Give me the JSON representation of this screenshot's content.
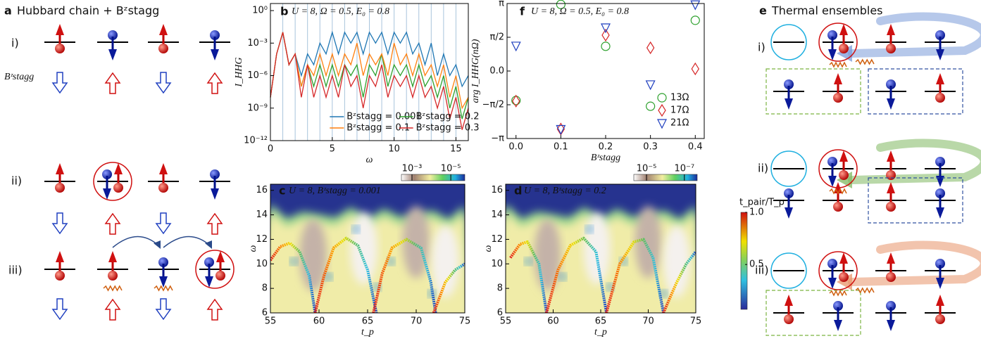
{
  "panel_a": {
    "letter": "a",
    "title": "Hubbard chain + Bᶻstagg",
    "field_label": "Bᶻstagg",
    "rows": [
      "i)",
      "ii)",
      "iii)"
    ]
  },
  "panel_e": {
    "letter": "e",
    "title": "Thermal ensembles",
    "rows": [
      "i)",
      "ii)",
      "iii)"
    ]
  },
  "chart_data": [
    {
      "type": "line",
      "letter": "b",
      "title": "U = 8, Ω = 0.5, E₀ = 0.8",
      "xlabel": "ω",
      "ylabel": "I_HHG",
      "log_y": true,
      "legend": "lower right",
      "xlim": [
        0,
        16
      ],
      "xticks": [
        0,
        5,
        10,
        15
      ],
      "ylim": [
        1e-12,
        4.5
      ],
      "yticks": [
        {
          "value": 1e-12,
          "label": "10⁻¹²"
        },
        {
          "value": 1e-09,
          "label": "10⁻⁹"
        },
        {
          "value": 1e-06,
          "label": "10⁻⁶"
        },
        {
          "value": 0.001,
          "label": "10⁻³"
        },
        {
          "value": 1,
          "label": "10⁰"
        }
      ],
      "vlines": [
        1,
        2,
        3,
        4,
        5,
        6,
        7,
        8,
        9,
        10,
        11,
        12,
        13,
        14,
        15
      ],
      "x": [
        0,
        0.5,
        1,
        1.5,
        2,
        2.5,
        3,
        3.5,
        4,
        4.5,
        5,
        5.5,
        6,
        6.5,
        7,
        7.5,
        8,
        8.5,
        9,
        9.5,
        10,
        10.5,
        11,
        11.5,
        12,
        12.5,
        13,
        13.5,
        14,
        14.5,
        15,
        15.5,
        16
      ],
      "series": [
        {
          "name": "Bᶻstagg = 0.001",
          "color": "#1f77b4",
          "values": [
            1e-08,
            0.0001,
            0.01,
            1e-05,
            0.0001,
            1e-06,
            0.0001,
            1e-05,
            0.001,
            0.0001,
            0.01,
            0.0001,
            0.01,
            0.001,
            0.01,
            0.0001,
            0.01,
            0.001,
            0.01,
            0.0001,
            0.01,
            0.001,
            0.01,
            0.0001,
            0.001,
            1e-05,
            0.001,
            1e-06,
            0.0001,
            1e-06,
            1e-05,
            1e-07,
            1e-06
          ]
        },
        {
          "name": "Bᶻstagg = 0.2",
          "color": "#2ca02c",
          "values": [
            1e-08,
            0.0001,
            0.01,
            1e-05,
            0.0001,
            1e-07,
            1e-05,
            1e-07,
            1e-05,
            1e-07,
            1e-05,
            1e-07,
            1e-05,
            1e-06,
            1e-05,
            1e-08,
            1e-05,
            1e-06,
            0.0001,
            1e-07,
            1e-05,
            1e-06,
            1e-05,
            1e-07,
            1e-05,
            1e-07,
            1e-06,
            1e-08,
            1e-06,
            1e-09,
            1e-07,
            1e-10,
            1e-08
          ]
        },
        {
          "name": "Bᶻstagg = 0.1",
          "color": "#ff7f0e",
          "values": [
            1e-08,
            0.0001,
            0.01,
            1e-05,
            0.0001,
            1e-07,
            1e-05,
            1e-06,
            0.0001,
            1e-06,
            0.0001,
            1e-06,
            0.0001,
            1e-05,
            0.001,
            1e-06,
            0.0001,
            1e-05,
            0.0001,
            1e-06,
            0.001,
            1e-05,
            0.0001,
            1e-06,
            0.0001,
            1e-06,
            1e-05,
            1e-07,
            1e-05,
            1e-08,
            1e-06,
            1e-09,
            1e-08
          ]
        },
        {
          "name": "Bᶻstagg = 0.3",
          "color": "#d62728",
          "values": [
            1e-08,
            0.0001,
            0.01,
            1e-05,
            0.0001,
            1e-08,
            1e-05,
            1e-08,
            1e-06,
            1e-08,
            1e-06,
            1e-08,
            1e-05,
            1e-07,
            1e-06,
            1e-09,
            1e-06,
            1e-07,
            1e-05,
            1e-08,
            1e-06,
            1e-07,
            1e-06,
            1e-08,
            1e-06,
            1e-08,
            1e-07,
            1e-09,
            1e-07,
            1e-10,
            1e-08,
            1e-11,
            1e-09
          ]
        }
      ]
    },
    {
      "type": "scatter",
      "letter": "f",
      "title": "U = 8, Ω = 0.5, E₀ = 0.8",
      "xlabel": "Bᶻstagg",
      "ylabel": "arg I_HHG(nΩ)",
      "legend": "lower right",
      "xlim": [
        -0.02,
        0.42
      ],
      "xticks": [
        {
          "value": 0,
          "label": "0.0"
        },
        0.1,
        0.2,
        0.3,
        0.4
      ],
      "ylim": [
        -3.1416,
        3.1416
      ],
      "yticks": [
        {
          "value": -3.1416,
          "label": "−π"
        },
        {
          "value": -1.5708,
          "label": "−π/2"
        },
        {
          "value": 0,
          "label": "0.0"
        },
        {
          "value": 1.5708,
          "label": "π/2"
        },
        {
          "value": 3.1416,
          "label": "π"
        }
      ],
      "x": [
        0,
        0.1,
        0.2,
        0.3,
        0.4
      ],
      "series": [
        {
          "name": "13Ω",
          "color": "#2ca02c",
          "marker": "circle",
          "values": [
            -1.37,
            3.1,
            1.15,
            -1.64,
            2.36
          ]
        },
        {
          "name": "17Ω",
          "color": "#d62728",
          "marker": "diamond",
          "values": [
            -1.4,
            -2.7,
            1.67,
            1.08,
            0.1
          ]
        },
        {
          "name": "21Ω",
          "color": "#1f3fbf",
          "marker": "triangle-down",
          "values": [
            1.18,
            -2.7,
            2.03,
            -0.62,
            3.1
          ]
        }
      ]
    },
    {
      "type": "heatmap",
      "letter": "c",
      "title": "U = 8, Bᶻstagg = 0.001",
      "xlabel": "t_p",
      "ylabel": "ω",
      "xlim": [
        55,
        75
      ],
      "xticks": [
        55,
        60,
        65,
        70,
        75
      ],
      "ylim": [
        6,
        16.5
      ],
      "yticks": [
        6,
        8,
        10,
        12,
        14,
        16
      ],
      "clim": [
        0.0035,
        1.9e-06
      ],
      "cticks": [
        {
          "value": 0.001,
          "label": "10⁻³"
        },
        {
          "value": 1e-05,
          "label": "10⁻⁵"
        }
      ],
      "arcs": [
        {
          "x": [
            55,
            56,
            57,
            58,
            59,
            59.6
          ],
          "y": [
            10.3,
            11.4,
            11.7,
            11,
            9,
            6
          ]
        },
        {
          "x": [
            59.6,
            60.5,
            61.5,
            62.8,
            64,
            65,
            65.9
          ],
          "y": [
            6,
            9,
            11.3,
            12.1,
            11.5,
            9.5,
            6
          ]
        },
        {
          "x": [
            65.6,
            66.5,
            67.5,
            69,
            70.5,
            71.5,
            72
          ],
          "y": [
            6,
            9.2,
            11.3,
            12,
            11.3,
            8.5,
            6
          ]
        },
        {
          "x": [
            71.8,
            73,
            74,
            75
          ],
          "y": [
            6,
            8.5,
            9.5,
            10
          ]
        }
      ]
    },
    {
      "type": "heatmap",
      "letter": "d",
      "title": "U = 8, Bᶻstagg = 0.2",
      "xlabel": "t_p",
      "ylabel": "ω",
      "xlim": [
        55,
        75
      ],
      "xticks": [
        55,
        60,
        65,
        70,
        75
      ],
      "ylim": [
        6,
        16.5
      ],
      "yticks": [
        6,
        8,
        10,
        12,
        14,
        16
      ],
      "clim": [
        4.7e-05,
        2.1e-08
      ],
      "cticks": [
        {
          "value": 1e-05,
          "label": "10⁻⁵"
        },
        {
          "value": 1e-07,
          "label": "10⁻⁷"
        }
      ],
      "arcs": [
        {
          "x": [
            55.5,
            56.5,
            57.3,
            58.5,
            59.3
          ],
          "y": [
            10.5,
            11.6,
            11.8,
            10,
            6
          ]
        },
        {
          "x": [
            59.3,
            60.5,
            61.8,
            63.2,
            64.5,
            65.6
          ],
          "y": [
            6,
            9.5,
            11.5,
            12.1,
            11,
            6
          ]
        },
        {
          "x": [
            65.6,
            67,
            68.5,
            69.5,
            70.5,
            71.6
          ],
          "y": [
            6,
            10,
            11.8,
            12,
            10.5,
            6
          ]
        },
        {
          "x": [
            71.6,
            73,
            74,
            75
          ],
          "y": [
            6,
            8.5,
            10,
            11
          ]
        }
      ],
      "pair_colorbar": {
        "label": "t_pair/T_p",
        "clim": [
          0.07,
          1
        ],
        "ticks": [
          0.5,
          {
            "value": 1,
            "label": "1.0"
          }
        ]
      }
    }
  ]
}
